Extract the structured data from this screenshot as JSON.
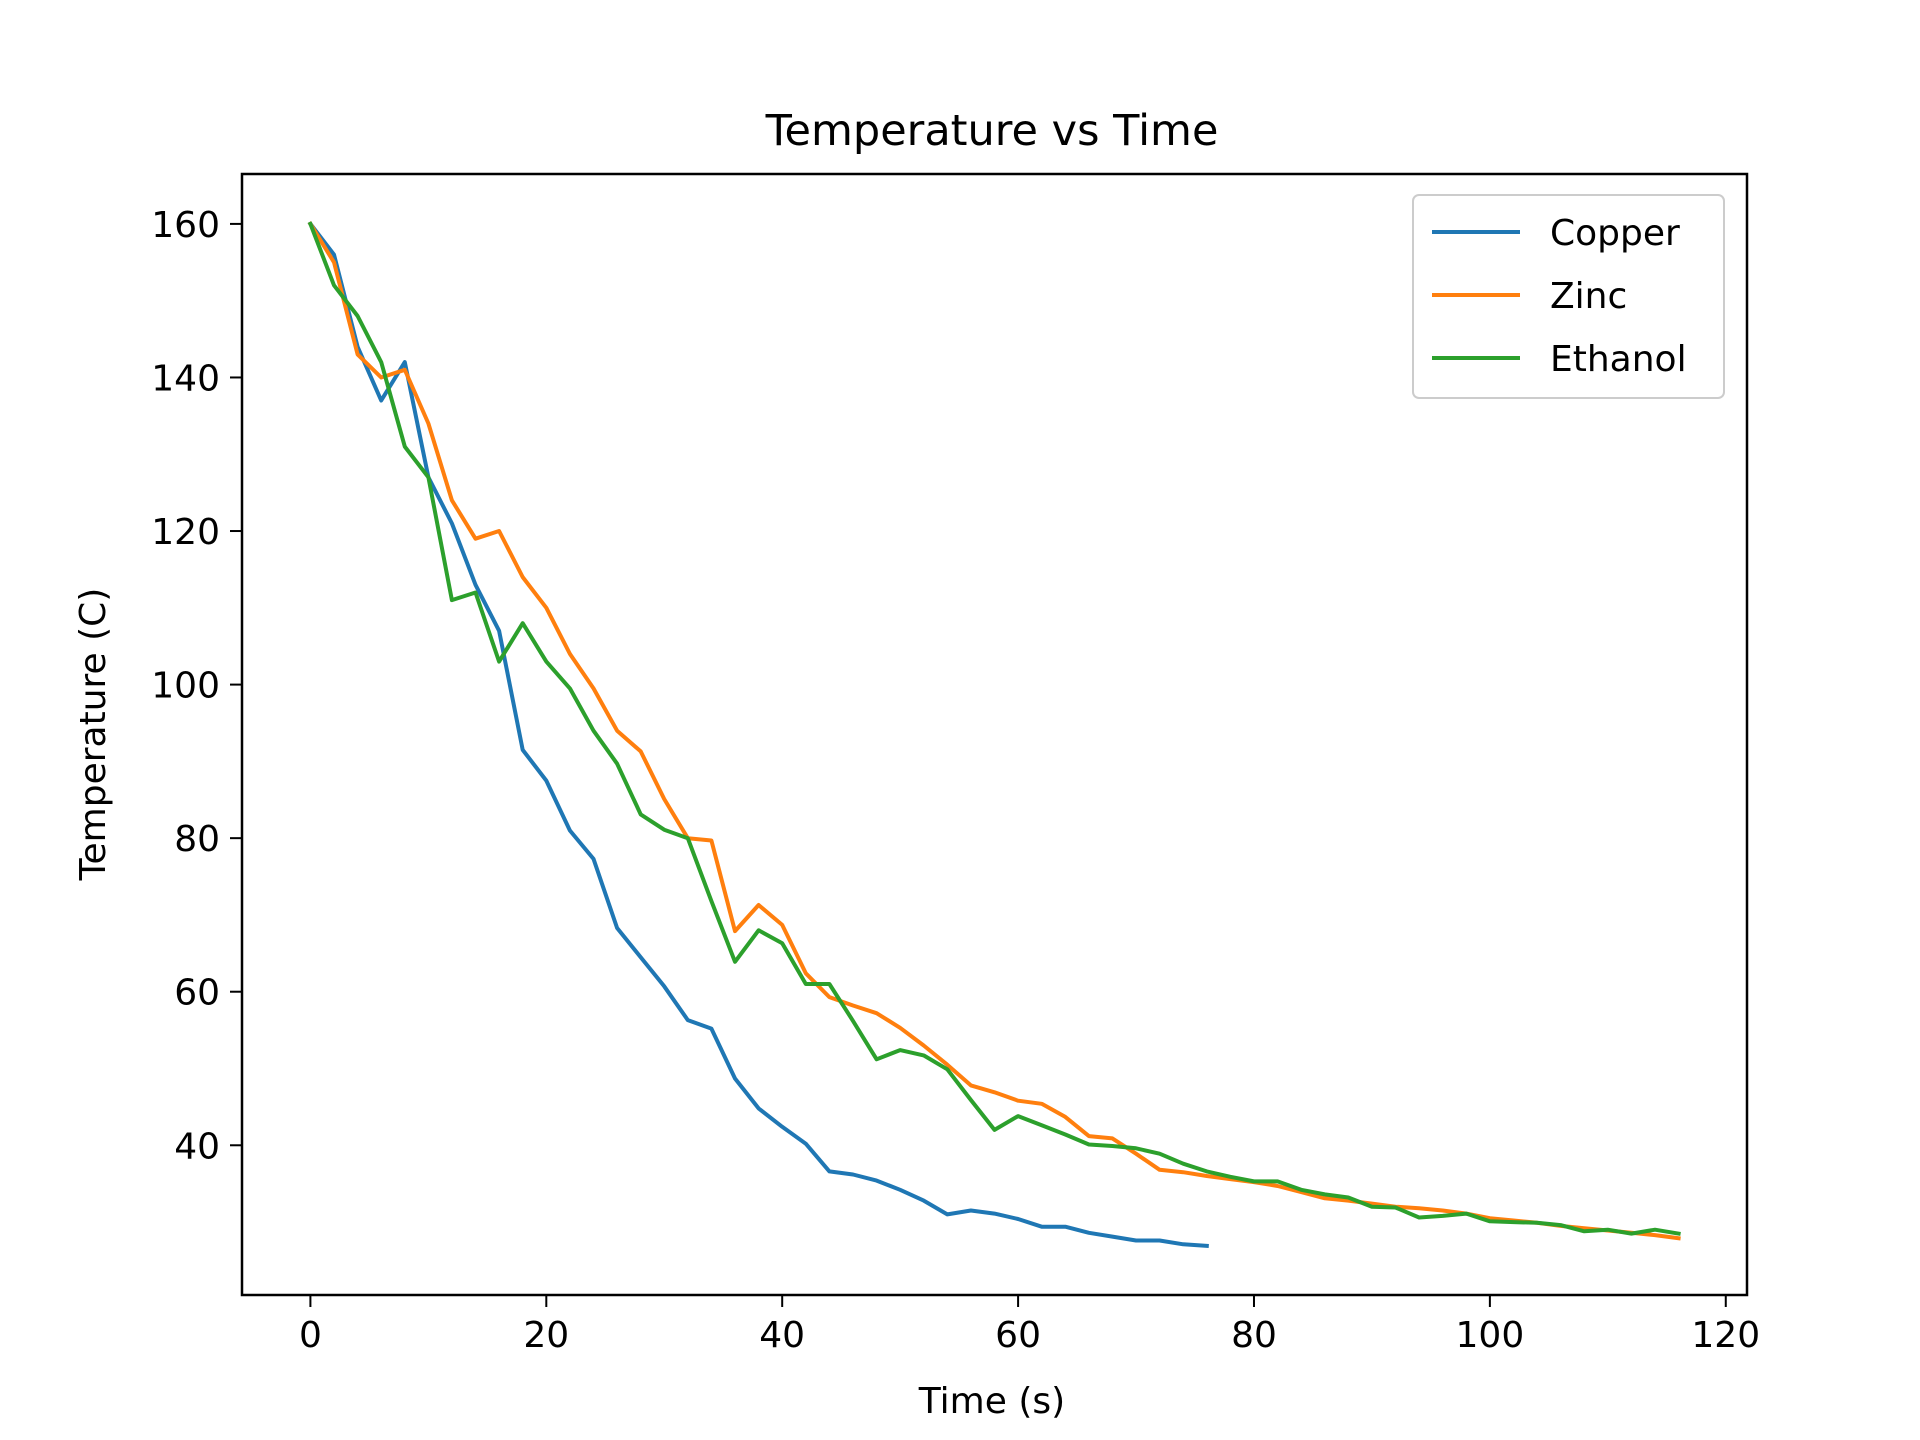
{
  "chart_data": {
    "type": "line",
    "title": "Temperature vs Time",
    "xlabel": "Time (s)",
    "ylabel": "Temperature (C)",
    "xlim": [
      -5.8,
      121.8
    ],
    "ylim": [
      20.5,
      166.5
    ],
    "xticks": [
      0,
      20,
      40,
      60,
      80,
      100,
      120
    ],
    "yticks": [
      40,
      60,
      80,
      100,
      120,
      140,
      160
    ],
    "grid": false,
    "legend_position": "top-right",
    "series": [
      {
        "name": "Copper",
        "color": "#1f77b4",
        "x": [
          0,
          2,
          4,
          6,
          8,
          10,
          12,
          14,
          16,
          18,
          20,
          22,
          24,
          26,
          28,
          30,
          32,
          34,
          36,
          38,
          40,
          42,
          44,
          46,
          48,
          50,
          52,
          54,
          56,
          58,
          60,
          62,
          64,
          66,
          68,
          70,
          72,
          74,
          76
        ],
        "y": [
          160,
          156,
          144,
          137,
          142,
          127,
          121,
          113,
          107,
          91.5,
          87.5,
          81,
          77.3,
          68.3,
          64.5,
          60.7,
          56.3,
          55.2,
          48.7,
          44.8,
          42.4,
          40.2,
          36.6,
          36.2,
          35.4,
          34.2,
          32.8,
          31,
          31.5,
          31.1,
          30.4,
          29.4,
          29.4,
          28.6,
          28.1,
          27.6,
          27.6,
          27.1,
          26.9
        ]
      },
      {
        "name": "Zinc",
        "color": "#ff7f0e",
        "x": [
          0,
          2,
          4,
          6,
          8,
          10,
          12,
          14,
          16,
          18,
          20,
          22,
          24,
          26,
          28,
          30,
          32,
          34,
          36,
          38,
          40,
          42,
          44,
          46,
          48,
          50,
          52,
          54,
          56,
          58,
          60,
          62,
          64,
          66,
          68,
          70,
          72,
          74,
          76,
          78,
          80,
          82,
          84,
          86,
          88,
          90,
          92,
          94,
          96,
          98,
          100,
          102,
          104,
          106,
          108,
          110,
          112,
          114,
          116
        ],
        "y": [
          160,
          155,
          143,
          140,
          141,
          134,
          124,
          119,
          120,
          114,
          110,
          104,
          99.5,
          94,
          91.3,
          85.1,
          80,
          79.7,
          67.9,
          71.3,
          68.7,
          62.4,
          59.3,
          58.2,
          57.2,
          55.3,
          53,
          50.5,
          47.8,
          46.9,
          45.8,
          45.4,
          43.7,
          41.2,
          40.9,
          38.9,
          36.8,
          36.5,
          36,
          35.6,
          35.2,
          34.7,
          33.9,
          33.1,
          32.8,
          32.4,
          32,
          31.8,
          31.5,
          31.1,
          30.5,
          30.2,
          29.9,
          29.5,
          29.2,
          28.9,
          28.6,
          28.3,
          27.9
        ]
      },
      {
        "name": "Ethanol",
        "color": "#2ca02c",
        "x": [
          0,
          2,
          4,
          6,
          8,
          10,
          12,
          14,
          16,
          18,
          20,
          22,
          24,
          26,
          28,
          30,
          32,
          34,
          36,
          38,
          40,
          42,
          44,
          46,
          48,
          50,
          52,
          54,
          56,
          58,
          60,
          62,
          64,
          66,
          68,
          70,
          72,
          74,
          76,
          78,
          80,
          82,
          84,
          86,
          88,
          90,
          92,
          94,
          96,
          98,
          100,
          102,
          104,
          106,
          108,
          110,
          112,
          114,
          116
        ],
        "y": [
          160,
          152,
          148,
          142,
          131,
          127,
          111,
          112,
          103,
          108,
          103,
          99.5,
          94,
          89.7,
          83.1,
          81.1,
          80,
          71.8,
          63.9,
          68,
          66.3,
          61,
          61,
          56.2,
          51.2,
          52.4,
          51.7,
          49.9,
          45.9,
          42,
          43.8,
          42.6,
          41.4,
          40.1,
          39.9,
          39.6,
          38.9,
          37.6,
          36.6,
          35.9,
          35.3,
          35.3,
          34.2,
          33.6,
          33.2,
          32,
          31.9,
          30.6,
          30.8,
          31.1,
          30.1,
          30,
          29.9,
          29.6,
          28.8,
          29,
          28.5,
          29,
          28.5
        ]
      }
    ]
  }
}
